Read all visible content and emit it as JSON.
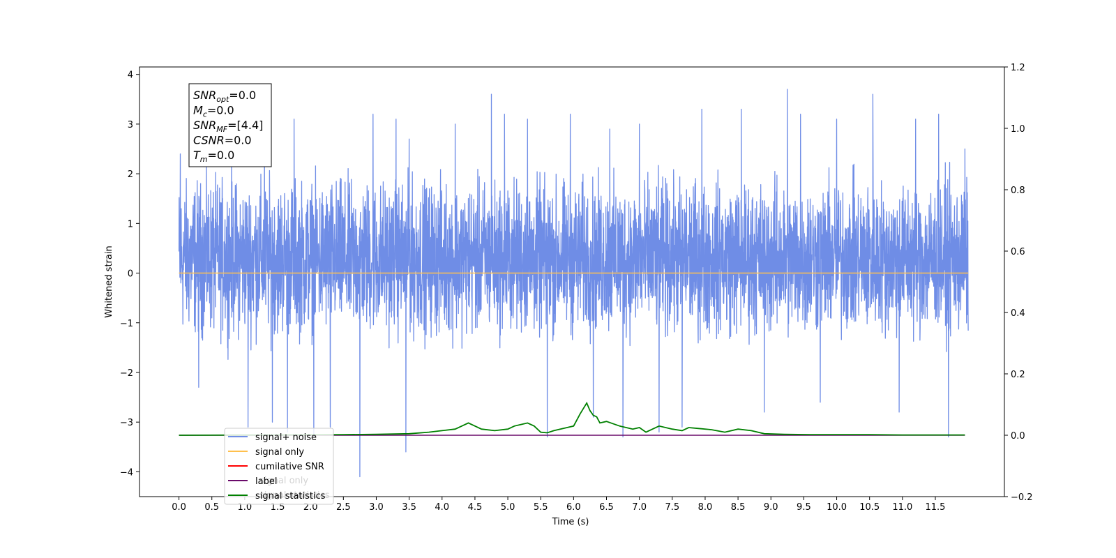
{
  "chart_data": {
    "type": "line",
    "xlabel": "Time (s)",
    "ylabel": "Whitened strain",
    "xlim": [
      -0.6,
      12.55
    ],
    "ylim": [
      -4.5,
      4.15
    ],
    "y2lim": [
      -0.2,
      1.2
    ],
    "x_ticks": [
      "0.0",
      "0.5",
      "1.0",
      "1.5",
      "2.0",
      "2.5",
      "3.0",
      "3.5",
      "4.0",
      "4.5",
      "5.0",
      "5.5",
      "6.0",
      "6.5",
      "7.0",
      "7.5",
      "8.0",
      "8.5",
      "9.0",
      "9.5",
      "10.0",
      "10.5",
      "11.0",
      "11.5"
    ],
    "y_ticks": [
      "4",
      "3",
      "2",
      "1",
      "0",
      "−1",
      "−2",
      "−3",
      "−4"
    ],
    "y2_ticks": [
      "1.2",
      "1.0",
      "0.8",
      "0.6",
      "0.4",
      "0.2",
      "0.0",
      "−0.2"
    ],
    "annotation": {
      "lines": [
        {
          "sym": "SNR",
          "sub": "opt",
          "rest": "=0.0"
        },
        {
          "sym": "M",
          "sub": "c",
          "rest": "=0.0"
        },
        {
          "sym": "SNR",
          "sub": "MF",
          "rest": "=[4.4]"
        },
        {
          "sym": "CSNR",
          "sub": "",
          "rest": "=0.0"
        },
        {
          "sym": "T",
          "sub": "m",
          "rest": "=0.0"
        }
      ]
    },
    "legend": {
      "position": "lower-left",
      "entries": [
        {
          "label": "signal+ noise",
          "color": "#6f8de6"
        },
        {
          "label": "signal only",
          "color": "#ffc04d"
        },
        {
          "label": "cumilative SNR",
          "color": "#ff0000"
        },
        {
          "label": "label",
          "color": "#6a0a6a"
        },
        {
          "label": "signal statistics",
          "color": "#008000"
        }
      ],
      "hidden_text": [
        "signal only",
        "signal statistics"
      ]
    },
    "series": [
      {
        "name": "signal+ noise",
        "axis": "left",
        "color": "#6f8de6",
        "x_range": [
          0.0,
          12.0
        ],
        "typical_range": [
          -1.8,
          2.3
        ],
        "spikes": [
          {
            "x": 0.02,
            "y": 2.4
          },
          {
            "x": 0.3,
            "y": -2.3
          },
          {
            "x": 0.8,
            "y": 2.6
          },
          {
            "x": 1.05,
            "y": -3.1
          },
          {
            "x": 1.3,
            "y": 2.9
          },
          {
            "x": 1.42,
            "y": -3.0
          },
          {
            "x": 1.65,
            "y": -3.2
          },
          {
            "x": 1.75,
            "y": 3.1
          },
          {
            "x": 2.05,
            "y": -3.3
          },
          {
            "x": 2.3,
            "y": -3.1
          },
          {
            "x": 2.75,
            "y": -4.1
          },
          {
            "x": 2.95,
            "y": 3.2
          },
          {
            "x": 3.3,
            "y": 3.1
          },
          {
            "x": 3.45,
            "y": -3.6
          },
          {
            "x": 3.5,
            "y": 2.7
          },
          {
            "x": 4.2,
            "y": 3.0
          },
          {
            "x": 4.75,
            "y": 3.6
          },
          {
            "x": 4.95,
            "y": 3.2
          },
          {
            "x": 5.3,
            "y": 3.1
          },
          {
            "x": 5.6,
            "y": -3.3
          },
          {
            "x": 5.95,
            "y": 3.2
          },
          {
            "x": 6.3,
            "y": -2.9
          },
          {
            "x": 6.55,
            "y": 2.9
          },
          {
            "x": 6.75,
            "y": -3.3
          },
          {
            "x": 7.0,
            "y": 3.0
          },
          {
            "x": 7.3,
            "y": -3.2
          },
          {
            "x": 7.65,
            "y": -3.1
          },
          {
            "x": 7.95,
            "y": 3.3
          },
          {
            "x": 8.55,
            "y": 3.3
          },
          {
            "x": 8.9,
            "y": -2.8
          },
          {
            "x": 9.25,
            "y": 3.7
          },
          {
            "x": 9.45,
            "y": 3.2
          },
          {
            "x": 9.75,
            "y": -2.6
          },
          {
            "x": 10.0,
            "y": 3.1
          },
          {
            "x": 10.55,
            "y": 3.6
          },
          {
            "x": 10.95,
            "y": -2.8
          },
          {
            "x": 11.2,
            "y": 3.1
          },
          {
            "x": 11.55,
            "y": 3.2
          },
          {
            "x": 11.7,
            "y": -3.3
          },
          {
            "x": 11.95,
            "y": 2.5
          }
        ]
      },
      {
        "name": "signal only",
        "axis": "left",
        "color": "#ffc04d",
        "x": [
          0.0,
          12.0
        ],
        "y": [
          0.0,
          0.0
        ]
      },
      {
        "name": "label",
        "axis": "right",
        "color": "#6a0a6a",
        "x": [
          0.0,
          11.95
        ],
        "y": [
          0.0,
          0.0
        ]
      },
      {
        "name": "signal statistics",
        "axis": "right",
        "color": "#008000",
        "x": [
          0.0,
          1.5,
          2.5,
          3.0,
          3.5,
          3.8,
          4.0,
          4.2,
          4.3,
          4.4,
          4.5,
          4.6,
          4.8,
          5.0,
          5.1,
          5.2,
          5.3,
          5.4,
          5.5,
          5.6,
          5.7,
          5.9,
          6.0,
          6.1,
          6.2,
          6.25,
          6.3,
          6.35,
          6.4,
          6.5,
          6.7,
          6.9,
          7.0,
          7.1,
          7.3,
          7.5,
          7.65,
          7.75,
          7.9,
          8.1,
          8.3,
          8.5,
          8.7,
          8.9,
          9.2,
          9.6,
          10.0,
          10.5,
          11.0,
          11.95
        ],
        "y": [
          0.0,
          0.001,
          0.002,
          0.003,
          0.005,
          0.01,
          0.015,
          0.02,
          0.03,
          0.04,
          0.03,
          0.02,
          0.015,
          0.02,
          0.03,
          0.035,
          0.04,
          0.03,
          0.01,
          0.008,
          0.015,
          0.025,
          0.03,
          0.07,
          0.105,
          0.08,
          0.065,
          0.06,
          0.04,
          0.045,
          0.03,
          0.02,
          0.025,
          0.01,
          0.03,
          0.02,
          0.015,
          0.025,
          0.022,
          0.018,
          0.01,
          0.02,
          0.015,
          0.005,
          0.003,
          0.002,
          0.002,
          0.002,
          0.001,
          0.001
        ]
      }
    ]
  }
}
